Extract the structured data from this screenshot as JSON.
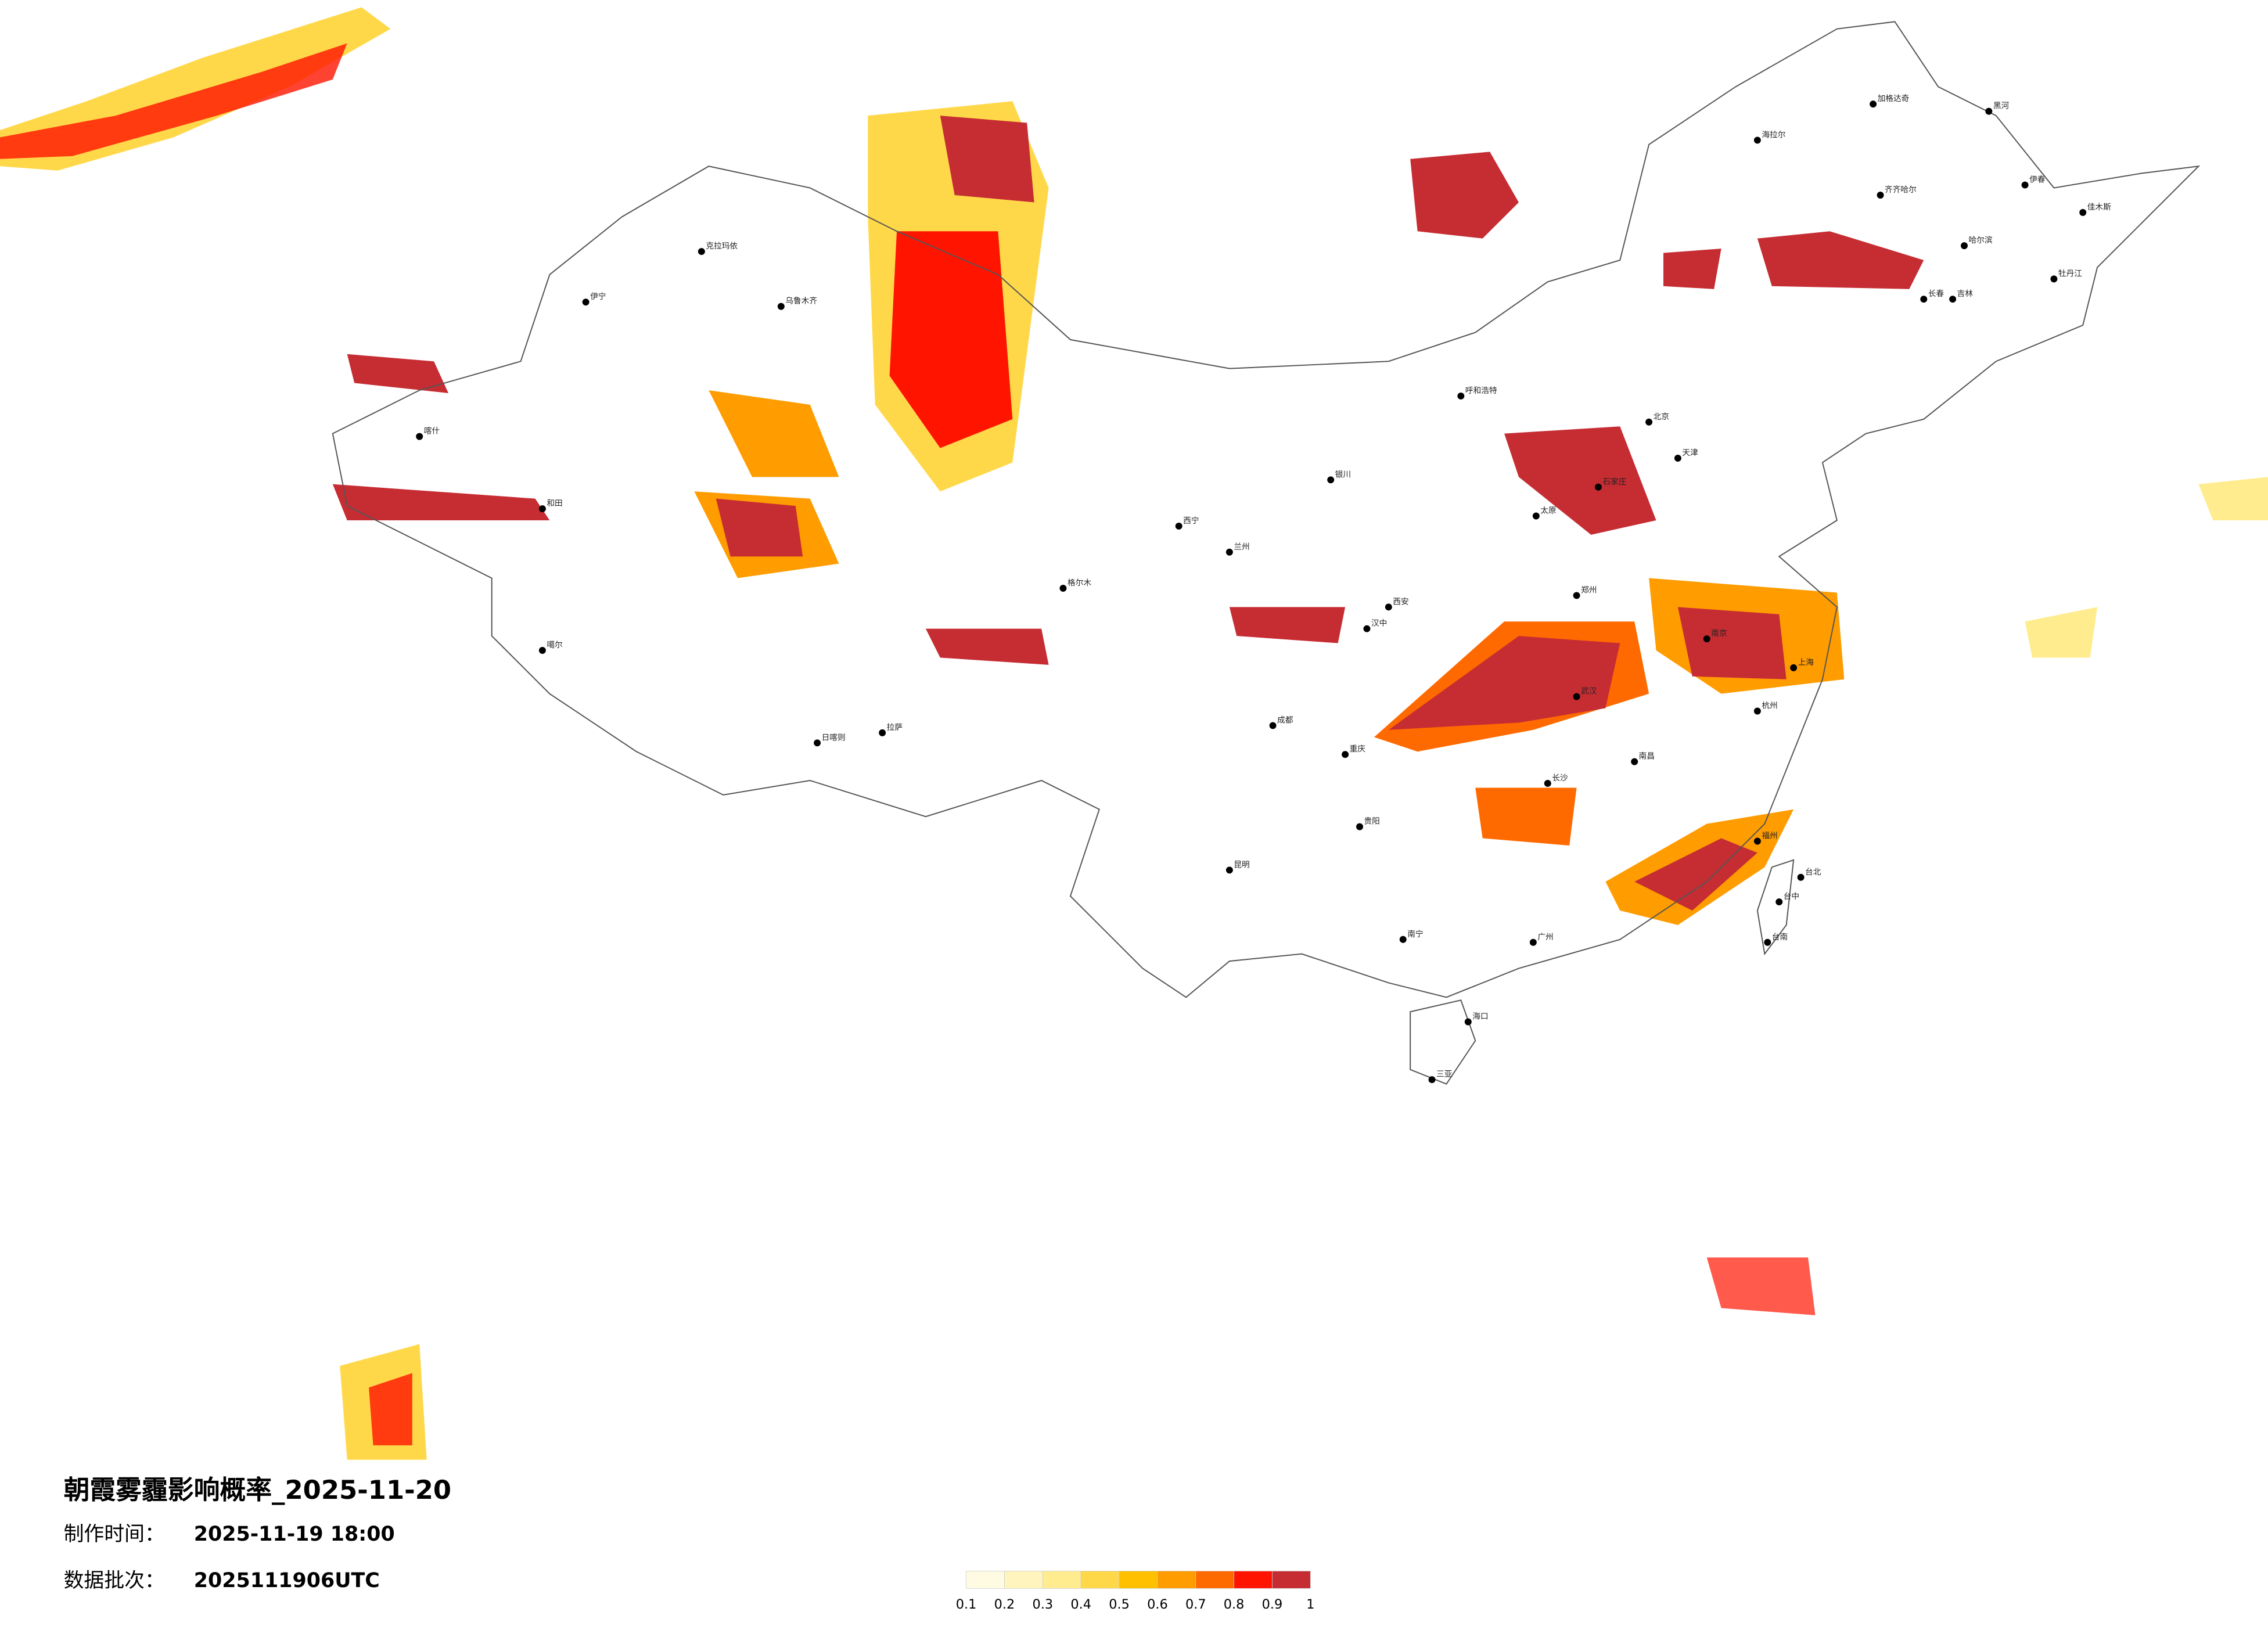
{
  "title": "朝霞雾霾影响概率_2025-11-20",
  "meta": [
    {
      "label": "制作时间：",
      "value": "2025-11-19 18:00"
    },
    {
      "label": "数据批次：",
      "value": "2025111906UTC"
    }
  ],
  "legend": {
    "colors": [
      "#fffbe3",
      "#fff4bd",
      "#ffec8f",
      "#ffd84a",
      "#ffc000",
      "#ff9c00",
      "#ff6a00",
      "#ff1400",
      "#c62d33"
    ],
    "ticks": [
      0.1,
      0.2,
      0.3,
      0.4,
      0.5,
      0.6,
      0.7,
      0.8,
      0.9,
      1
    ]
  },
  "cities": [
    "哈尔滨",
    "长春",
    "齐齐哈尔",
    "海拉尔",
    "加格达奇",
    "黑河",
    "伊春",
    "佳木斯",
    "牡丹江",
    "吉林",
    "北京",
    "天津",
    "石家庄",
    "太原",
    "呼和浩特",
    "郑州",
    "西安",
    "汉中",
    "武汉",
    "南京",
    "上海",
    "杭州",
    "南昌",
    "长沙",
    "福州",
    "广州",
    "南宁",
    "海口",
    "三亚",
    "昆明",
    "贵阳",
    "成都",
    "重庆",
    "拉萨",
    "日喀则",
    "西宁",
    "兰州",
    "银川",
    "格尔木",
    "乌鲁木齐",
    "克拉玛依",
    "伊宁",
    "喀什",
    "和田",
    "噶尔",
    "台北",
    "台中",
    "台南"
  ]
}
